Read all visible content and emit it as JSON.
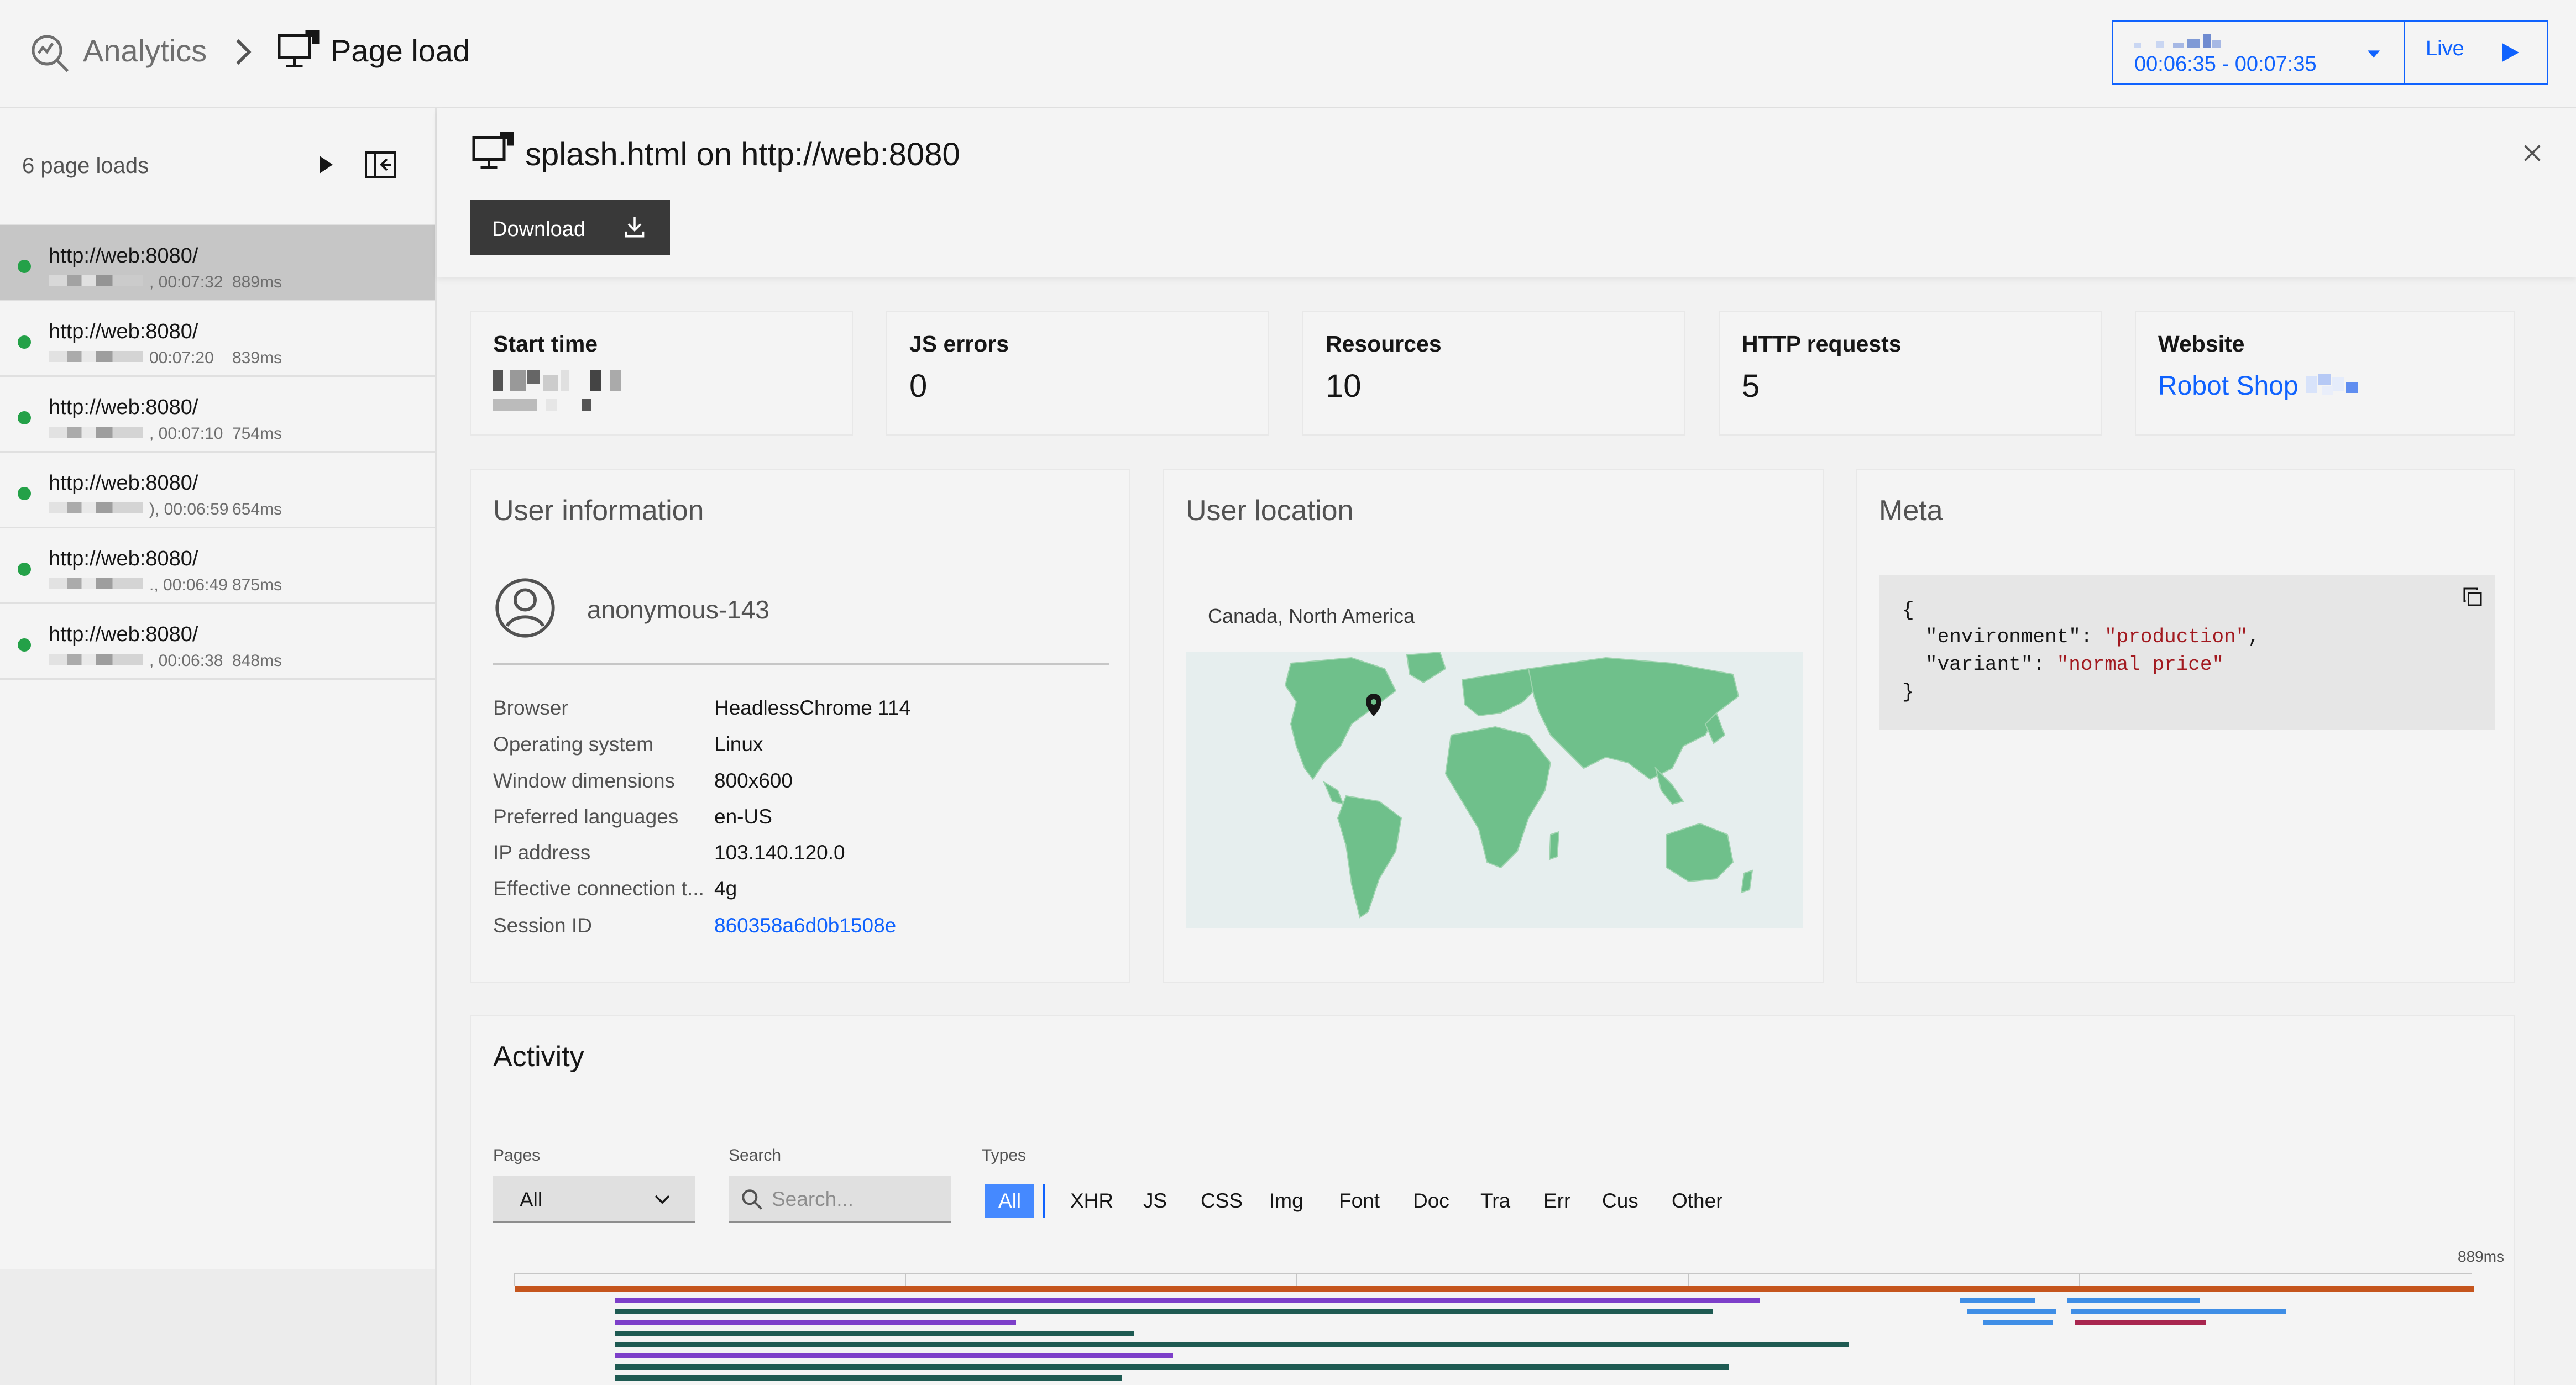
{
  "header": {
    "breadcrumb_root": "Analytics",
    "breadcrumb_current": "Page load",
    "time_range": "00:06:35 - 00:07:35",
    "live_label": "Live"
  },
  "sidebar": {
    "count_label": "6 page loads",
    "items": [
      {
        "url": "http://web:8080/",
        "time": ", 00:07:32",
        "duration": "889ms",
        "selected": true
      },
      {
        "url": "http://web:8080/",
        "time": "00:07:20",
        "duration": "839ms",
        "selected": false
      },
      {
        "url": "http://web:8080/",
        "time": ", 00:07:10",
        "duration": "754ms",
        "selected": false
      },
      {
        "url": "http://web:8080/",
        "time": "), 00:06:59",
        "duration": "654ms",
        "selected": false
      },
      {
        "url": "http://web:8080/",
        "time": "., 00:06:49",
        "duration": "875ms",
        "selected": false
      },
      {
        "url": "http://web:8080/",
        "time": ", 00:06:38",
        "duration": "848ms",
        "selected": false
      }
    ]
  },
  "detail": {
    "title": "splash.html on http://web:8080",
    "download_label": "Download",
    "stats": {
      "start_time_label": "Start time",
      "js_errors_label": "JS errors",
      "js_errors_value": "0",
      "resources_label": "Resources",
      "resources_value": "10",
      "http_requests_label": "HTTP requests",
      "http_requests_value": "5",
      "website_label": "Website",
      "website_value": "Robot Shop"
    },
    "user_info": {
      "title": "User information",
      "user_name": "anonymous-143",
      "rows": [
        {
          "label": "Browser",
          "value": "HeadlessChrome 114"
        },
        {
          "label": "Operating system",
          "value": "Linux"
        },
        {
          "label": "Window dimensions",
          "value": "800x600"
        },
        {
          "label": "Preferred languages",
          "value": "en-US"
        },
        {
          "label": "IP address",
          "value": "103.140.120.0"
        },
        {
          "label": "Effective connection t...",
          "value": "4g"
        },
        {
          "label": "Session ID",
          "value": "860358a6d0b1508e"
        }
      ]
    },
    "location": {
      "title": "User location",
      "place": "Canada, North America"
    },
    "meta": {
      "title": "Meta",
      "open_brace": "{",
      "close_brace": "}",
      "entries": [
        {
          "key": "\"environment\"",
          "value": "\"production\"",
          "sep": ": ",
          "trail": ","
        },
        {
          "key": "\"variant\"",
          "value": "\"normal price\"",
          "sep": ": ",
          "trail": ""
        }
      ]
    },
    "activity": {
      "title": "Activity",
      "pages_label": "Pages",
      "pages_value": "All",
      "search_label": "Search",
      "search_placeholder": "Search...",
      "types_label": "Types",
      "types": [
        "All",
        "XHR",
        "JS",
        "CSS",
        "Img",
        "Font",
        "Doc",
        "Tra",
        "Err",
        "Cus",
        "Other"
      ],
      "active_type": "All",
      "timeline_max": "889ms"
    }
  },
  "colors": {
    "accent": "#0f62fe",
    "link": "#0f62fe",
    "status_ok": "#24a148",
    "map_land": "#6fc08b",
    "bar_page": "#c5551d",
    "bar_script": "#7d3fc9",
    "bar_doc": "#1e5a52",
    "bar_xhr": "#3f8ee6",
    "bar_err": "#a8264f"
  }
}
